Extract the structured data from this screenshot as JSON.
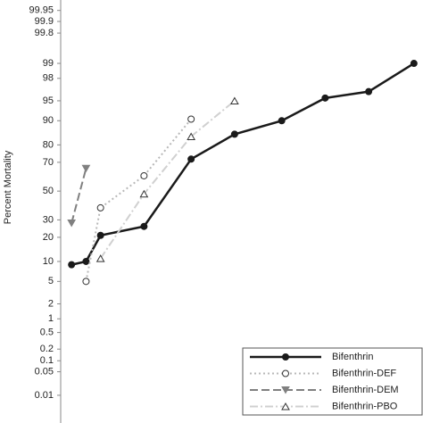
{
  "chart_data": {
    "type": "line",
    "yscale": "probit",
    "ylabel": "Percent Mortality",
    "xlim": [
      0,
      100
    ],
    "ylim": [
      0.0012,
      99.975
    ],
    "yticks": [
      99.95,
      99.9,
      99.8,
      99,
      98,
      95,
      90,
      80,
      70,
      50,
      30,
      20,
      10,
      5,
      2,
      1,
      0.5,
      0.2,
      0.1,
      0.05,
      0.01
    ],
    "legend": "lower right",
    "series": [
      {
        "name": "Bifenthrin",
        "color": "#1a1a1a",
        "dash": "solid",
        "marker": "filled-circle",
        "x": [
          3,
          7,
          11,
          23,
          36,
          48,
          61,
          73,
          85,
          97.5
        ],
        "values": [
          9,
          10,
          21,
          26,
          72,
          85,
          90,
          95.5,
          96.5,
          99
        ]
      },
      {
        "name": "Bifenthrin-DEF",
        "color": "#b8b8b8",
        "dash": "dotted",
        "marker": "open-circle",
        "x": [
          7,
          11,
          23,
          36
        ],
        "values": [
          5,
          38,
          61,
          90.5
        ]
      },
      {
        "name": "Bifenthrin-DEM",
        "color": "#808080",
        "dash": "dashed",
        "marker": "filled-triangle",
        "x": [
          3,
          7
        ],
        "values": [
          28,
          66
        ]
      },
      {
        "name": "Bifenthrin-PBO",
        "color": "#d0d0d0",
        "dash": "dashdot",
        "marker": "open-triangle",
        "x": [
          11,
          23,
          36,
          48
        ],
        "values": [
          11,
          48,
          84,
          95
        ]
      }
    ]
  }
}
